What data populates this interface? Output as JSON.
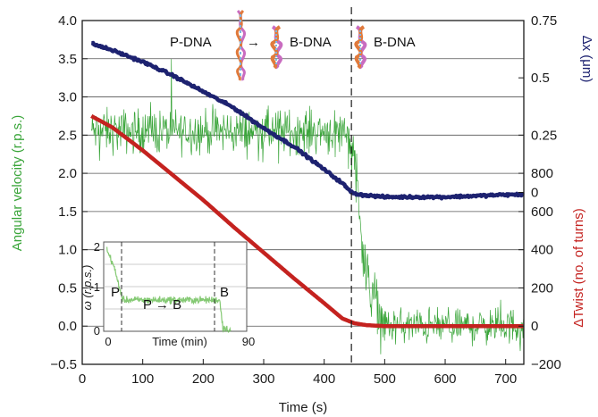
{
  "colors": {
    "angular": "#3aa53a",
    "dx": "#1d2270",
    "twist": "#c4221f",
    "axis": "#1a1a1a",
    "grid": "#555555",
    "inset_trace": "#6fbf5a"
  },
  "chart_data": [
    {
      "type": "line",
      "role": "main",
      "x_label": "Time (s)",
      "x_ticks": [
        "0",
        "100",
        "200",
        "300",
        "400",
        "500",
        "600",
        "700"
      ],
      "x_range": [
        0,
        730
      ],
      "y_left": {
        "label": "Angular velocity (r.p.s.)",
        "ticks": [
          "−0.5",
          "0.0",
          "0.5",
          "1.0",
          "1.5",
          "2.0",
          "2.5",
          "3.0",
          "3.5",
          "4.0"
        ],
        "range": [
          -0.5,
          4.0
        ]
      },
      "y_right_top": {
        "label": "Δx (μm)",
        "ticks": [
          "0",
          "0.25",
          "0.5",
          "0.75"
        ],
        "range": [
          -0.75,
          0.75
        ]
      },
      "y_right_bottom": {
        "label": "ΔTwist (no. of turns)",
        "ticks": [
          "−200",
          "0",
          "200",
          "400",
          "600",
          "800"
        ],
        "range": [
          -200,
          1600
        ]
      },
      "grid": "horizontal",
      "transition_marker_x": 445,
      "annotations": {
        "p_to_b": "P-DNA",
        "b_dna_1": "B-DNA",
        "b_dna_2": "B-DNA",
        "arrow": "→"
      },
      "series": [
        {
          "axis": "left",
          "color_key": "angular",
          "segments": [
            {
              "x": [
                15,
                440
              ],
              "mean": 2.55,
              "noise": 0.22
            },
            {
              "x": [
                440,
                450
              ],
              "mean": 2.35,
              "noise": 0.25
            },
            {
              "x": [
                450,
                470
              ],
              "mean": 1.4,
              "noise": 0.3
            },
            {
              "x": [
                470,
                500
              ],
              "mean": 0.45,
              "noise": 0.25
            },
            {
              "x": [
                500,
                730
              ],
              "mean": 0.0,
              "noise": 0.18
            }
          ]
        },
        {
          "axis": "right_top",
          "color_key": "dx",
          "x": [
            15,
            50,
            100,
            150,
            200,
            250,
            300,
            350,
            400,
            430,
            445,
            460,
            500,
            600,
            700,
            730
          ],
          "values": [
            0.65,
            0.62,
            0.57,
            0.51,
            0.44,
            0.37,
            0.28,
            0.2,
            0.1,
            0.04,
            0.0,
            -0.01,
            -0.02,
            -0.02,
            -0.01,
            -0.01
          ]
        },
        {
          "axis": "right_bottom",
          "color_key": "twist",
          "x": [
            15,
            50,
            100,
            150,
            200,
            250,
            300,
            350,
            400,
            430,
            450,
            470,
            500,
            550,
            600,
            650,
            700,
            730
          ],
          "values": [
            1100,
            1040,
            920,
            790,
            660,
            520,
            385,
            250,
            120,
            40,
            15,
            5,
            0,
            0,
            0,
            0,
            0,
            0
          ]
        }
      ]
    },
    {
      "type": "line",
      "role": "inset",
      "x_label": "Time (min)",
      "y_label": "ω (r.p.s.)",
      "x_ticks": [
        "0",
        "90"
      ],
      "y_ticks": [
        "0",
        "1",
        "2"
      ],
      "x_range": [
        0,
        90
      ],
      "y_range": [
        0,
        2
      ],
      "markers_x": [
        8,
        74
      ],
      "labels": {
        "p": "P",
        "transition": "P → B",
        "b": "B"
      },
      "values": {
        "start": 1.5,
        "plateau": 0.7,
        "end": 0.0
      }
    }
  ]
}
